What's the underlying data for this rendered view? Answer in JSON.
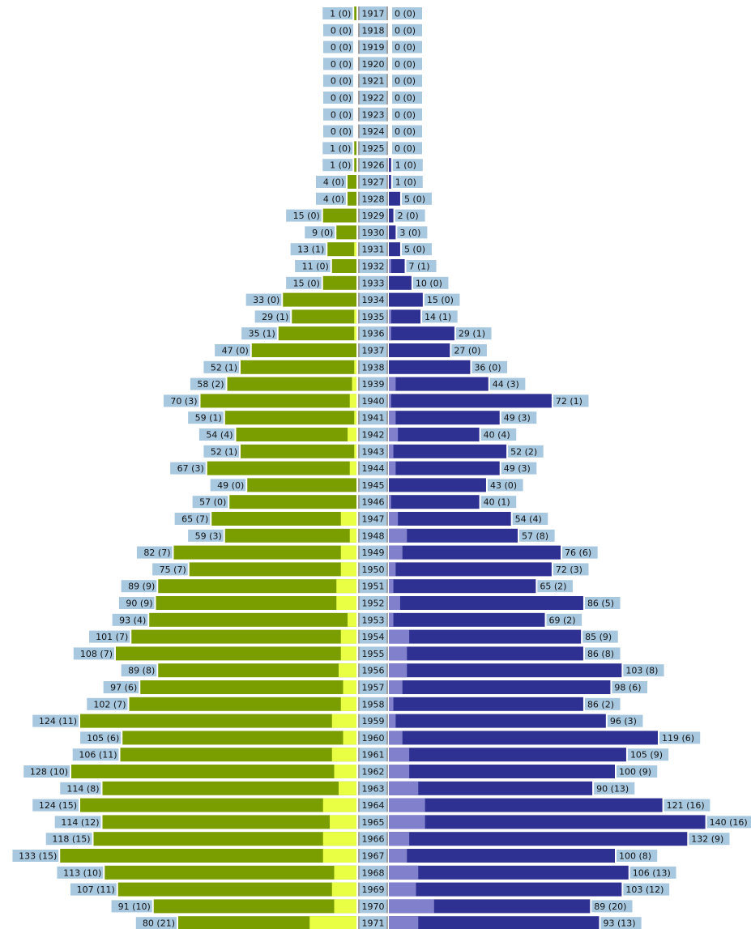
{
  "chart_data": {
    "type": "bar",
    "title": "",
    "xlabel": "",
    "ylabel": "",
    "grid": false,
    "legend": "none",
    "x_range": [
      0,
      140
    ],
    "categories": [
      "1917",
      "1918",
      "1919",
      "1920",
      "1921",
      "1922",
      "1923",
      "1924",
      "1925",
      "1926",
      "1927",
      "1928",
      "1929",
      "1930",
      "1931",
      "1932",
      "1933",
      "1934",
      "1935",
      "1936",
      "1937",
      "1938",
      "1939",
      "1940",
      "1941",
      "1942",
      "1943",
      "1944",
      "1945",
      "1946",
      "1947",
      "1948",
      "1949",
      "1950",
      "1951",
      "1952",
      "1953",
      "1954",
      "1955",
      "1956",
      "1957",
      "1958",
      "1959",
      "1960",
      "1961",
      "1962",
      "1963",
      "1964",
      "1965",
      "1966",
      "1967",
      "1968",
      "1969",
      "1970",
      "1971"
    ],
    "series": [
      {
        "side": "left",
        "color": "#7a9e00",
        "sub_color": "#e8ff44",
        "values": [
          1,
          0,
          0,
          0,
          0,
          0,
          0,
          0,
          1,
          1,
          4,
          4,
          15,
          9,
          13,
          11,
          15,
          33,
          29,
          35,
          47,
          52,
          58,
          70,
          59,
          54,
          52,
          67,
          49,
          57,
          65,
          59,
          82,
          75,
          89,
          90,
          93,
          101,
          108,
          89,
          97,
          102,
          124,
          105,
          106,
          128,
          114,
          124,
          114,
          118,
          133,
          113,
          107,
          91,
          80
        ],
        "sub_values": [
          0,
          0,
          0,
          0,
          0,
          0,
          0,
          0,
          0,
          0,
          0,
          0,
          0,
          0,
          1,
          0,
          0,
          0,
          1,
          1,
          0,
          1,
          2,
          3,
          1,
          4,
          1,
          3,
          0,
          0,
          7,
          3,
          7,
          7,
          9,
          9,
          4,
          7,
          7,
          8,
          6,
          7,
          11,
          6,
          11,
          10,
          8,
          15,
          12,
          15,
          15,
          10,
          11,
          10,
          21
        ],
        "labels": [
          "1 (0)",
          "0 (0)",
          "0 (0)",
          "0 (0)",
          "0 (0)",
          "0 (0)",
          "0 (0)",
          "0 (0)",
          "1 (0)",
          "1 (0)",
          "4 (0)",
          "4 (0)",
          "15 (0)",
          "9 (0)",
          "13 (1)",
          "11 (0)",
          "15 (0)",
          "33 (0)",
          "29 (1)",
          "35 (1)",
          "47 (0)",
          "52 (1)",
          "58 (2)",
          "70 (3)",
          "59 (1)",
          "54 (4)",
          "52 (1)",
          "67 (3)",
          "49 (0)",
          "57 (0)",
          "65 (7)",
          "59 (3)",
          "82 (7)",
          "75 (7)",
          "89 (9)",
          "90 (9)",
          "93 (4)",
          "101 (7)",
          "108 (7)",
          "89 (8)",
          "97 (6)",
          "102 (7)",
          "124 (11)",
          "105 (6)",
          "106 (11)",
          "128 (10)",
          "114 (8)",
          "124 (15)",
          "114 (12)",
          "118 (15)",
          "133 (15)",
          "113 (10)",
          "107 (11)",
          "91 (10)",
          "80 (21)"
        ]
      },
      {
        "side": "right",
        "color": "#2e3192",
        "sub_color": "#8080cc",
        "values": [
          0,
          0,
          0,
          0,
          0,
          0,
          0,
          0,
          0,
          1,
          1,
          5,
          2,
          3,
          5,
          7,
          10,
          15,
          14,
          29,
          27,
          36,
          44,
          72,
          49,
          40,
          52,
          49,
          43,
          40,
          54,
          57,
          76,
          72,
          65,
          86,
          69,
          85,
          86,
          103,
          98,
          86,
          96,
          119,
          105,
          100,
          90,
          121,
          140,
          132,
          100,
          106,
          103,
          89,
          93
        ],
        "sub_values": [
          0,
          0,
          0,
          0,
          0,
          0,
          0,
          0,
          0,
          0,
          0,
          0,
          0,
          0,
          0,
          1,
          0,
          0,
          1,
          1,
          0,
          0,
          3,
          1,
          3,
          4,
          2,
          3,
          0,
          1,
          4,
          8,
          6,
          3,
          2,
          5,
          2,
          9,
          8,
          8,
          6,
          2,
          3,
          6,
          9,
          9,
          13,
          16,
          16,
          9,
          8,
          13,
          12,
          20,
          13
        ],
        "labels": [
          "0 (0)",
          "0 (0)",
          "0 (0)",
          "0 (0)",
          "0 (0)",
          "0 (0)",
          "0 (0)",
          "0 (0)",
          "0 (0)",
          "1 (0)",
          "1 (0)",
          "5 (0)",
          "2 (0)",
          "3 (0)",
          "5 (0)",
          "7 (1)",
          "10 (0)",
          "15 (0)",
          "14 (1)",
          "29 (1)",
          "27 (0)",
          "36 (0)",
          "44 (3)",
          "72 (1)",
          "49 (3)",
          "40 (4)",
          "52 (2)",
          "49 (3)",
          "43 (0)",
          "40 (1)",
          "54 (4)",
          "57 (8)",
          "76 (6)",
          "72 (3)",
          "65 (2)",
          "86 (5)",
          "69 (2)",
          "85 (9)",
          "86 (8)",
          "103 (8)",
          "98 (6)",
          "86 (2)",
          "96 (3)",
          "119 (6)",
          "105 (9)",
          "100 (9)",
          "90 (13)",
          "121 (16)",
          "140 (16)",
          "132 (9)",
          "100 (8)",
          "106 (13)",
          "103 (12)",
          "89 (20)",
          "93 (13)"
        ]
      }
    ],
    "colors": {
      "label_bg": "#a8c8e0",
      "center_bar": "#a0a0a0",
      "background": "#ffffff"
    }
  }
}
